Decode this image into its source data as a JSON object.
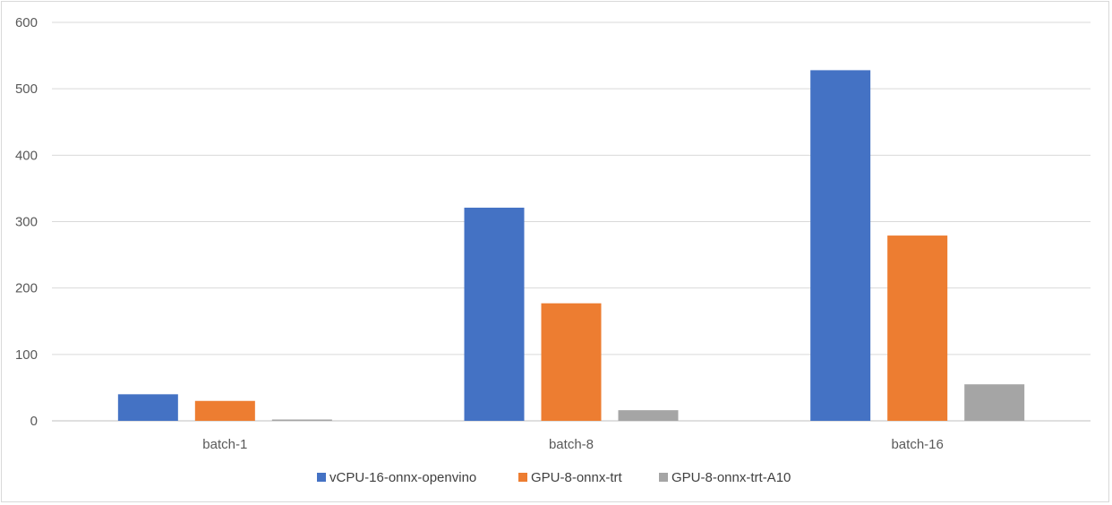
{
  "chart_data": {
    "type": "bar",
    "title": "",
    "xlabel": "",
    "ylabel": "",
    "categories": [
      "batch-1",
      "batch-8",
      "batch-16"
    ],
    "series": [
      {
        "name": "vCPU-16-onnx-openvino",
        "color": "#4472c4",
        "values": [
          40,
          321,
          528
        ]
      },
      {
        "name": "GPU-8-onnx-trt",
        "color": "#ed7d31",
        "values": [
          30,
          177,
          279
        ]
      },
      {
        "name": "GPU-8-onnx-trt-A10",
        "color": "#a5a5a5",
        "values": [
          2,
          16,
          55
        ]
      }
    ],
    "ylim": [
      0,
      600
    ],
    "yticks": [
      0,
      100,
      200,
      300,
      400,
      500,
      600
    ],
    "grid": true,
    "legend_position": "bottom"
  }
}
